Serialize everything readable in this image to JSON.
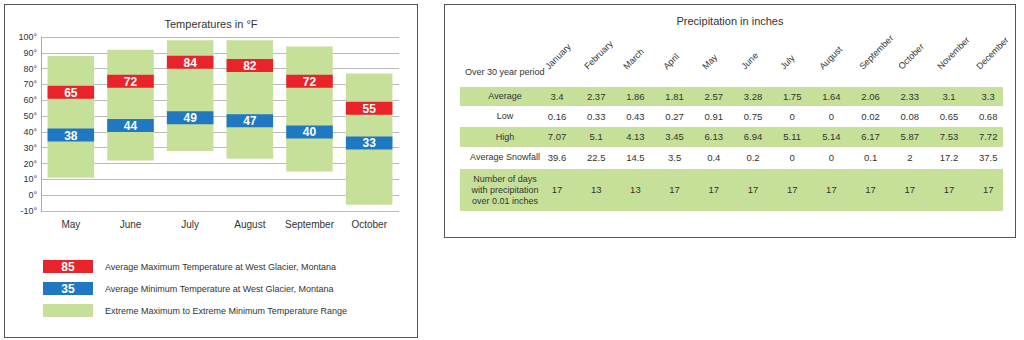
{
  "chart_data": {
    "type": "range_bar",
    "title": "Temperatures in °F",
    "categories": [
      "May",
      "June",
      "July",
      "August",
      "September",
      "October"
    ],
    "ylim": [
      -10,
      100
    ],
    "yticks": [
      {
        "value": -10,
        "label": "-10°"
      },
      {
        "value": 0,
        "label": "0°"
      },
      {
        "value": 10,
        "label": "10°"
      },
      {
        "value": 20,
        "label": "20°"
      },
      {
        "value": 30,
        "label": "30°"
      },
      {
        "value": 40,
        "label": "40°"
      },
      {
        "value": 50,
        "label": "50°"
      },
      {
        "value": 60,
        "label": "60°"
      },
      {
        "value": 70,
        "label": "70°"
      },
      {
        "value": 80,
        "label": "80°"
      },
      {
        "value": 90,
        "label": "90°"
      },
      {
        "value": 100,
        "label": "100°"
      }
    ],
    "grid": true,
    "legend": "bottom",
    "data_labels": true,
    "series": [
      {
        "name": "Average Maximum Temperature at West Glacier, Montana",
        "type": "band",
        "color": "#e8232b",
        "legend_value": 85,
        "values": [
          65,
          72,
          84,
          82,
          72,
          55
        ]
      },
      {
        "name": "Average Minimum Temperature at West Glacier, Montana",
        "type": "band",
        "color": "#1f78c1",
        "legend_value": 35,
        "values": [
          38,
          44,
          49,
          47,
          40,
          33
        ]
      },
      {
        "name": "Extreme Maximum to Extreme Minimum Temperature Range",
        "type": "range",
        "color": "#c6e09a",
        "low": [
          11,
          22,
          28,
          23,
          15,
          -6
        ],
        "high": [
          88,
          92,
          98,
          98,
          94,
          77
        ]
      }
    ]
  },
  "table": {
    "title": "Precipitation in inches",
    "row_header": "Over 30 year period",
    "columns": [
      "January",
      "February",
      "March",
      "April",
      "May",
      "June",
      "July",
      "August",
      "September",
      "October",
      "November",
      "December"
    ],
    "rows": [
      {
        "label": "Average",
        "values": [
          3.4,
          2.37,
          1.86,
          1.81,
          2.57,
          3.28,
          1.75,
          1.64,
          2.06,
          2.33,
          3.1,
          3.3
        ]
      },
      {
        "label": "Low",
        "values": [
          0.16,
          0.33,
          0.43,
          0.27,
          0.91,
          0.75,
          0,
          0,
          0.02,
          0.08,
          0.65,
          0.68
        ]
      },
      {
        "label": "High",
        "values": [
          7.07,
          5.1,
          4.13,
          3.45,
          6.13,
          6.94,
          5.11,
          5.14,
          6.17,
          5.87,
          7.53,
          7.72
        ]
      },
      {
        "label": "Average Snowfall",
        "values": [
          39.6,
          22.5,
          14.5,
          3.5,
          0.4,
          0.2,
          0,
          0,
          0.1,
          2,
          17.2,
          37.5
        ]
      },
      {
        "label": "Number of days\nwith precipitation\nover 0.01 inches",
        "values": [
          17,
          13,
          13,
          17,
          17,
          17,
          17,
          17,
          17,
          17,
          17,
          17
        ]
      }
    ]
  }
}
